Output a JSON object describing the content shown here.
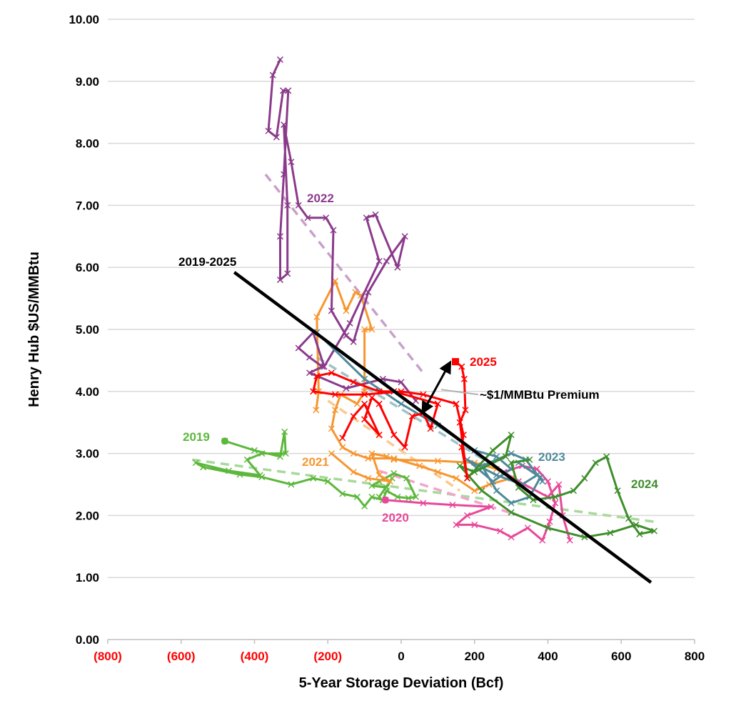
{
  "chart_data": {
    "type": "line",
    "xlabel": "5-Year Storage Deviation (Bcf)",
    "ylabel": "Henry Hub $US/MMBtu",
    "xlim": [
      -800,
      800
    ],
    "ylim": [
      0,
      10
    ],
    "x_ticks": [
      {
        "value": -800,
        "label": "(800)",
        "color": "#ff0000"
      },
      {
        "value": -600,
        "label": "(600)",
        "color": "#ff0000"
      },
      {
        "value": -400,
        "label": "(400)",
        "color": "#ff0000"
      },
      {
        "value": -200,
        "label": "(200)",
        "color": "#ff0000"
      },
      {
        "value": 0,
        "label": "0",
        "color": "#000000"
      },
      {
        "value": 200,
        "label": "200",
        "color": "#000000"
      },
      {
        "value": 400,
        "label": "400",
        "color": "#000000"
      },
      {
        "value": 600,
        "label": "600",
        "color": "#000000"
      },
      {
        "value": 800,
        "label": "800",
        "color": "#000000"
      }
    ],
    "y_ticks": [
      "0.00",
      "1.00",
      "2.00",
      "3.00",
      "4.00",
      "5.00",
      "6.00",
      "7.00",
      "8.00",
      "9.00",
      "10.00"
    ],
    "grid": "horizontal",
    "series": [
      {
        "name": "2019",
        "color": "#5cb83c",
        "start_marker": "circle",
        "points": [
          [
            -481,
            3.2
          ],
          [
            -400,
            3.05
          ],
          [
            -330,
            2.95
          ],
          [
            -318,
            3.35
          ],
          [
            -315,
            3.0
          ],
          [
            -380,
            3.0
          ],
          [
            -420,
            2.9
          ],
          [
            -385,
            2.65
          ],
          [
            -470,
            2.72
          ],
          [
            -560,
            2.85
          ],
          [
            -540,
            2.78
          ],
          [
            -440,
            2.66
          ],
          [
            -380,
            2.62
          ],
          [
            -300,
            2.5
          ],
          [
            -240,
            2.6
          ],
          [
            -200,
            2.55
          ],
          [
            -160,
            2.35
          ],
          [
            -120,
            2.3
          ],
          [
            -100,
            2.15
          ],
          [
            -80,
            2.3
          ],
          [
            -50,
            2.25
          ],
          [
            -40,
            2.4
          ],
          [
            -10,
            2.3
          ],
          [
            20,
            2.28
          ],
          [
            40,
            2.3
          ],
          [
            15,
            2.6
          ],
          [
            -20,
            2.68
          ],
          [
            -60,
            2.55
          ],
          [
            -80,
            2.48
          ],
          [
            -40,
            2.45
          ],
          [
            -25,
            2.6
          ],
          [
            -60,
            2.3
          ]
        ],
        "trend": [
          [
            -570,
            2.9
          ],
          [
            690,
            1.9
          ]
        ]
      },
      {
        "name": "2020",
        "color": "#e8489a",
        "start_marker": "circle",
        "points": [
          [
            -43,
            2.25
          ],
          [
            60,
            2.2
          ],
          [
            140,
            2.17
          ],
          [
            245,
            2.14
          ],
          [
            180,
            2.0
          ],
          [
            150,
            1.85
          ],
          [
            200,
            1.85
          ],
          [
            270,
            1.75
          ],
          [
            300,
            1.65
          ],
          [
            345,
            1.8
          ],
          [
            385,
            1.6
          ],
          [
            405,
            1.9
          ],
          [
            420,
            2.2
          ],
          [
            400,
            2.55
          ],
          [
            370,
            2.75
          ],
          [
            330,
            2.8
          ],
          [
            280,
            2.7
          ],
          [
            320,
            2.55
          ],
          [
            400,
            2.3
          ],
          [
            430,
            2.5
          ],
          [
            440,
            2.0
          ],
          [
            460,
            1.6
          ]
        ],
        "trend": [
          [
            -60,
            2.72
          ],
          [
            320,
            2.0
          ]
        ]
      },
      {
        "name": "2021",
        "color": "#f7962f",
        "points": [
          [
            -190,
            3.0
          ],
          [
            -130,
            2.7
          ],
          [
            -90,
            2.6
          ],
          [
            -30,
            2.55
          ],
          [
            -60,
            2.65
          ],
          [
            -80,
            3.0
          ],
          [
            -40,
            2.95
          ],
          [
            -20,
            2.9
          ],
          [
            100,
            2.88
          ],
          [
            200,
            2.85
          ],
          [
            260,
            2.75
          ],
          [
            300,
            2.6
          ],
          [
            240,
            2.5
          ],
          [
            200,
            2.4
          ],
          [
            150,
            2.6
          ],
          [
            100,
            2.7
          ],
          [
            50,
            2.8
          ],
          [
            -20,
            2.92
          ],
          [
            -90,
            2.92
          ],
          [
            -130,
            3.0
          ],
          [
            -160,
            3.1
          ],
          [
            -190,
            3.4
          ],
          [
            -180,
            3.7
          ],
          [
            -165,
            3.95
          ],
          [
            -120,
            3.8
          ],
          [
            -100,
            4.0
          ],
          [
            -100,
            5.0
          ],
          [
            -80,
            5.0
          ],
          [
            -110,
            5.55
          ],
          [
            -125,
            5.6
          ],
          [
            -150,
            5.3
          ],
          [
            -180,
            5.78
          ],
          [
            -230,
            5.2
          ],
          [
            -225,
            4.0
          ],
          [
            -232,
            3.7
          ]
        ],
        "trend": [
          [
            -200,
            3.85
          ],
          [
            160,
            2.4
          ]
        ]
      },
      {
        "name": "2022",
        "color": "#8b3a8b",
        "points": [
          [
            -330,
            9.35
          ],
          [
            -350,
            9.1
          ],
          [
            -362,
            8.2
          ],
          [
            -340,
            8.1
          ],
          [
            -322,
            8.85
          ],
          [
            -308,
            8.85
          ],
          [
            -320,
            7.5
          ],
          [
            -330,
            6.5
          ],
          [
            -330,
            5.8
          ],
          [
            -310,
            5.9
          ],
          [
            -310,
            7.0
          ],
          [
            -320,
            8.3
          ],
          [
            -300,
            7.7
          ],
          [
            -280,
            7.0
          ],
          [
            -255,
            6.8
          ],
          [
            -205,
            6.8
          ],
          [
            -185,
            6.6
          ],
          [
            -190,
            5.3
          ],
          [
            -150,
            4.9
          ],
          [
            -130,
            4.8
          ],
          [
            -90,
            5.6
          ],
          [
            -40,
            6.1
          ],
          [
            10,
            6.5
          ],
          [
            -10,
            6.0
          ],
          [
            -70,
            6.85
          ],
          [
            -95,
            6.8
          ],
          [
            -60,
            6.1
          ],
          [
            -140,
            5.1
          ],
          [
            -210,
            4.4
          ],
          [
            -240,
            4.95
          ],
          [
            -280,
            4.7
          ],
          [
            -250,
            4.55
          ],
          [
            -215,
            4.4
          ],
          [
            -250,
            4.3
          ],
          [
            -150,
            4.05
          ],
          [
            -50,
            4.2
          ],
          [
            0,
            4.15
          ],
          [
            40,
            3.85
          ]
        ],
        "trend": [
          [
            -370,
            7.5
          ],
          [
            60,
            4.3
          ]
        ]
      },
      {
        "name": "2023",
        "color": "#4e8a9a",
        "points": [
          [
            -230,
            4.95
          ],
          [
            -100,
            4.2
          ],
          [
            0,
            3.8
          ],
          [
            100,
            3.45
          ],
          [
            200,
            3.05
          ],
          [
            260,
            2.95
          ],
          [
            300,
            2.75
          ],
          [
            250,
            2.55
          ],
          [
            180,
            2.9
          ],
          [
            260,
            2.65
          ],
          [
            330,
            2.5
          ],
          [
            370,
            2.65
          ],
          [
            320,
            2.85
          ],
          [
            380,
            2.62
          ],
          [
            350,
            2.3
          ],
          [
            300,
            2.2
          ],
          [
            260,
            2.4
          ],
          [
            220,
            2.8
          ],
          [
            300,
            3.0
          ],
          [
            340,
            2.9
          ],
          [
            385,
            2.55
          ]
        ],
        "trend": [
          [
            -230,
            4.55
          ],
          [
            350,
            2.45
          ]
        ]
      },
      {
        "name": "2024",
        "color": "#3e8e2b",
        "points": [
          [
            180,
            2.6
          ],
          [
            250,
            3.05
          ],
          [
            300,
            3.3
          ],
          [
            285,
            2.95
          ],
          [
            200,
            2.7
          ],
          [
            160,
            2.8
          ],
          [
            220,
            2.4
          ],
          [
            300,
            2.05
          ],
          [
            400,
            1.8
          ],
          [
            500,
            1.65
          ],
          [
            570,
            1.72
          ],
          [
            640,
            1.85
          ],
          [
            690,
            1.75
          ],
          [
            650,
            1.7
          ],
          [
            620,
            1.95
          ],
          [
            590,
            2.4
          ],
          [
            560,
            2.95
          ],
          [
            530,
            2.85
          ],
          [
            500,
            2.6
          ],
          [
            470,
            2.4
          ],
          [
            420,
            2.3
          ],
          [
            360,
            2.25
          ],
          [
            320,
            2.45
          ],
          [
            300,
            2.85
          ],
          [
            350,
            2.9
          ]
        ]
      },
      {
        "name": "2025",
        "color": "#ff0000",
        "end_marker": "square",
        "points": [
          [
            -160,
            3.25
          ],
          [
            -130,
            3.6
          ],
          [
            -100,
            3.8
          ],
          [
            -60,
            3.3
          ],
          [
            -100,
            3.55
          ],
          [
            -80,
            3.9
          ],
          [
            -60,
            3.8
          ],
          [
            -20,
            3.3
          ],
          [
            10,
            3.1
          ],
          [
            30,
            3.6
          ],
          [
            60,
            3.65
          ],
          [
            80,
            3.4
          ],
          [
            100,
            3.8
          ],
          [
            -20,
            4.0
          ],
          [
            -60,
            4.0
          ],
          [
            -130,
            4.15
          ],
          [
            -190,
            4.3
          ],
          [
            -230,
            4.25
          ],
          [
            -240,
            4.0
          ],
          [
            -180,
            3.95
          ],
          [
            -100,
            3.95
          ],
          [
            0,
            4.0
          ],
          [
            60,
            3.95
          ],
          [
            150,
            3.8
          ],
          [
            170,
            3.3
          ],
          [
            165,
            3.1
          ],
          [
            180,
            2.6
          ],
          [
            160,
            3.5
          ],
          [
            175,
            3.7
          ],
          [
            172,
            4.2
          ],
          [
            165,
            4.4
          ],
          [
            148,
            4.48
          ]
        ]
      }
    ],
    "regression": {
      "label": "2019-2025",
      "color": "#000000",
      "points": [
        [
          -455,
          5.92
        ],
        [
          681,
          0.92
        ]
      ]
    },
    "annotation": {
      "text": "~$1/MMBtu Premium",
      "arrow_from": [
        64,
        3.72
      ],
      "arrow_to": [
        128,
        4.41
      ]
    }
  }
}
